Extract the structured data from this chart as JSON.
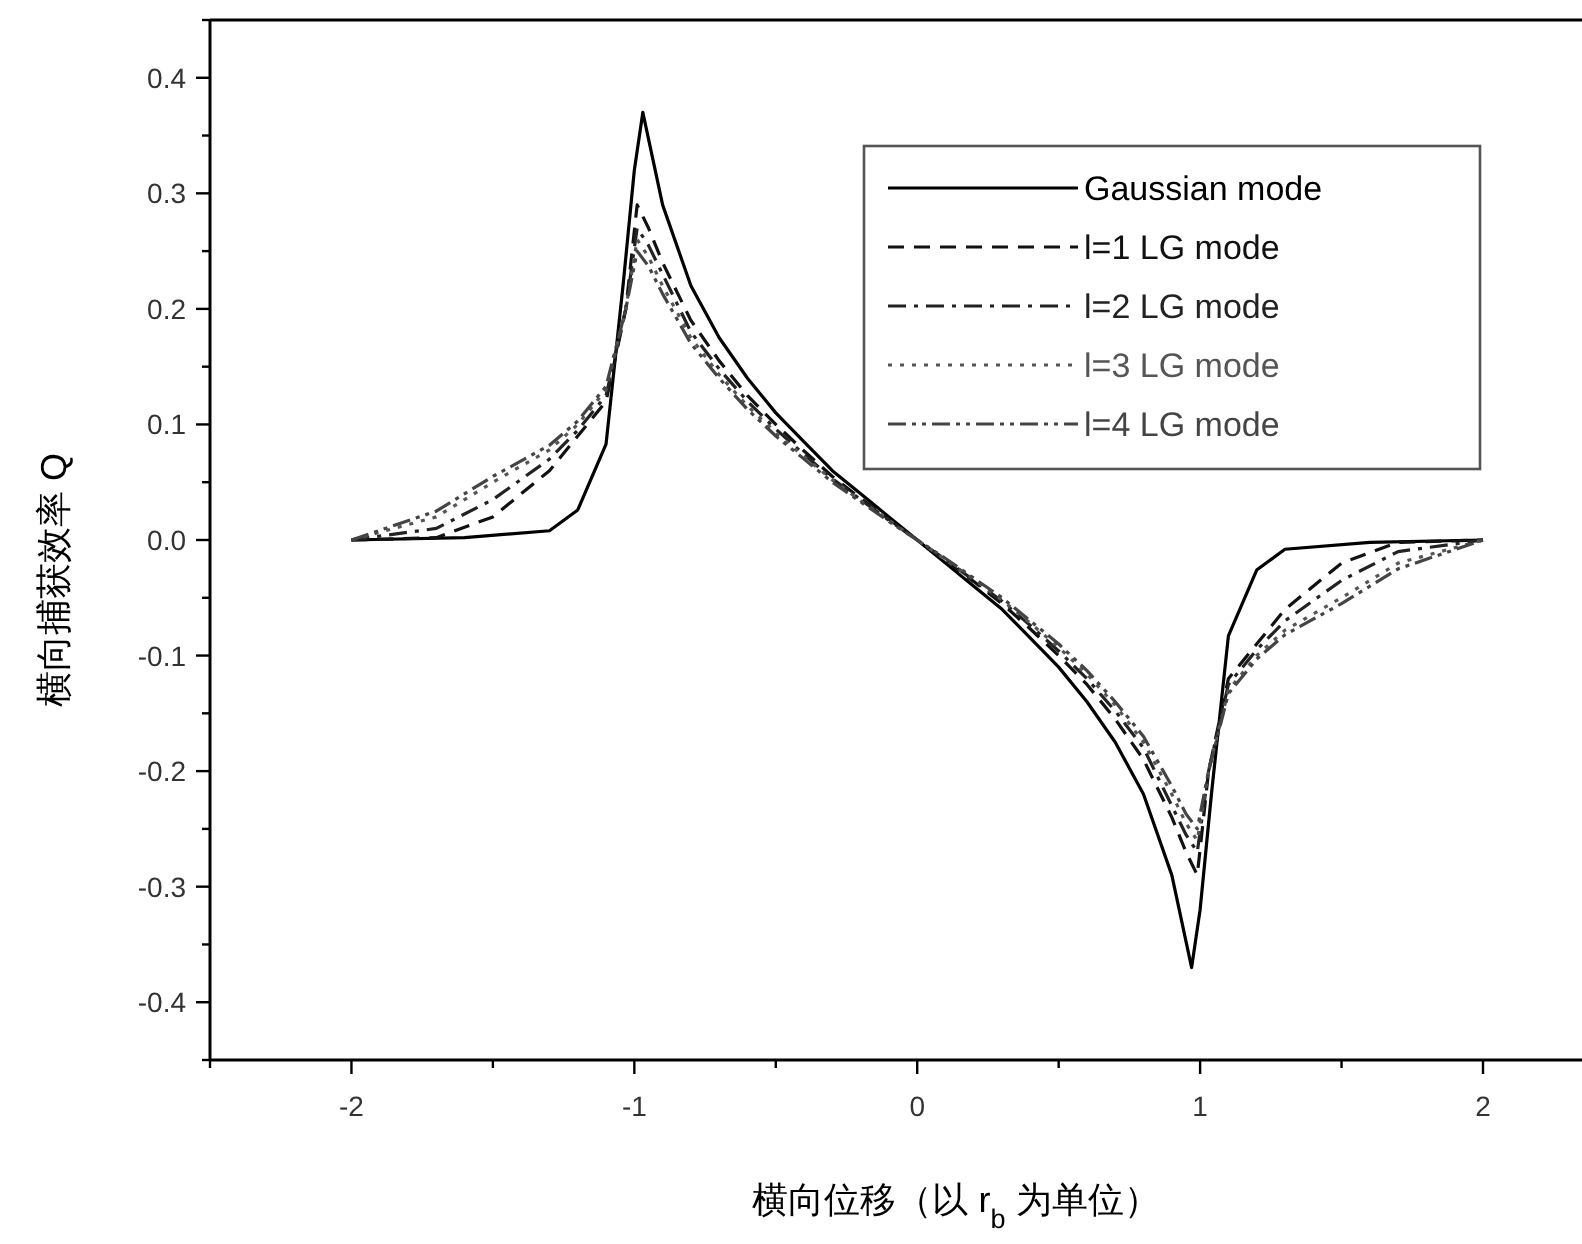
{
  "chart_data": {
    "type": "line",
    "xlabel": "横向位移（以 r$_{b}$ 为单位）",
    "ylabel": "横向捕获效率 Q",
    "x": [
      -2,
      -1.7,
      -1.5,
      -1.3,
      -1.2,
      -1.1,
      -1.03,
      -0.99,
      -0.95,
      -0.9,
      -0.8,
      -0.7,
      -0.6,
      -0.5,
      -0.4,
      -0.3,
      -0.2,
      -0.1,
      0,
      0.1,
      0.2,
      0.3,
      0.4,
      0.5,
      0.6,
      0.7,
      0.8,
      0.9,
      0.95,
      0.99,
      1.03,
      1.1,
      1.2,
      1.3,
      1.5,
      1.7,
      2
    ],
    "series": [
      {
        "name": "Gaussian mode",
        "color": "#000000",
        "line_style": "solid",
        "x": [
          -2,
          -1.6,
          -1.3,
          -1.2,
          -1.1,
          -1.04,
          -1.0,
          -0.97,
          -0.9,
          -0.8,
          -0.7,
          -0.6,
          -0.5,
          -0.4,
          -0.3,
          -0.2,
          -0.1,
          0,
          0.1,
          0.2,
          0.3,
          0.4,
          0.5,
          0.6,
          0.7,
          0.8,
          0.9,
          0.97,
          1.0,
          1.04,
          1.1,
          1.2,
          1.3,
          1.6,
          2
        ],
        "values": [
          0,
          0.002,
          0.008,
          0.026,
          0.083,
          0.22,
          0.32,
          0.37,
          0.29,
          0.22,
          0.175,
          0.14,
          0.11,
          0.085,
          0.06,
          0.04,
          0.02,
          0,
          -0.02,
          -0.04,
          -0.06,
          -0.085,
          -0.11,
          -0.14,
          -0.175,
          -0.22,
          -0.29,
          -0.37,
          -0.32,
          -0.22,
          -0.083,
          -0.026,
          -0.008,
          -0.002,
          0
        ]
      },
      {
        "name": "l=1 LG mode",
        "color": "#111111",
        "line_style": "dashed",
        "values": [
          0,
          0.002,
          0.02,
          0.06,
          0.09,
          0.12,
          0.2,
          0.29,
          0.27,
          0.24,
          0.19,
          0.155,
          0.125,
          0.1,
          0.077,
          0.055,
          0.036,
          0.018,
          0,
          -0.018,
          -0.036,
          -0.055,
          -0.077,
          -0.1,
          -0.125,
          -0.155,
          -0.19,
          -0.24,
          -0.27,
          -0.29,
          -0.2,
          -0.12,
          -0.09,
          -0.06,
          -0.02,
          -0.002,
          0
        ]
      },
      {
        "name": "l=2 LG mode",
        "color": "#222222",
        "line_style": "dashdot",
        "values": [
          0,
          0.01,
          0.035,
          0.07,
          0.095,
          0.125,
          0.2,
          0.27,
          0.255,
          0.23,
          0.18,
          0.148,
          0.12,
          0.096,
          0.074,
          0.053,
          0.035,
          0.017,
          0,
          -0.017,
          -0.035,
          -0.053,
          -0.074,
          -0.096,
          -0.12,
          -0.148,
          -0.18,
          -0.23,
          -0.255,
          -0.27,
          -0.2,
          -0.125,
          -0.095,
          -0.07,
          -0.035,
          -0.01,
          0
        ]
      },
      {
        "name": "l=3 LG mode",
        "color": "#555555",
        "line_style": "dotted",
        "values": [
          0,
          0.02,
          0.05,
          0.078,
          0.1,
          0.13,
          0.2,
          0.26,
          0.245,
          0.22,
          0.175,
          0.143,
          0.116,
          0.093,
          0.072,
          0.052,
          0.034,
          0.017,
          0,
          -0.017,
          -0.034,
          -0.052,
          -0.072,
          -0.093,
          -0.116,
          -0.143,
          -0.175,
          -0.22,
          -0.245,
          -0.26,
          -0.2,
          -0.13,
          -0.1,
          -0.078,
          -0.05,
          -0.02,
          0
        ]
      },
      {
        "name": "l=4 LG mode",
        "color": "#444444",
        "line_style": "dashdotdot",
        "values": [
          0,
          0.025,
          0.055,
          0.082,
          0.103,
          0.133,
          0.2,
          0.25,
          0.237,
          0.213,
          0.17,
          0.14,
          0.113,
          0.09,
          0.07,
          0.05,
          0.033,
          0.016,
          0,
          -0.016,
          -0.033,
          -0.05,
          -0.07,
          -0.09,
          -0.113,
          -0.14,
          -0.17,
          -0.213,
          -0.237,
          -0.25,
          -0.2,
          -0.133,
          -0.103,
          -0.082,
          -0.055,
          -0.025,
          0
        ]
      }
    ],
    "xlim": [
      -2.5,
      2.35
    ],
    "ylim": [
      -0.45,
      0.45
    ],
    "xticks": [
      {
        "value": -2.5,
        "label": null
      },
      -2,
      {
        "value": -1.5,
        "label": null
      },
      -1,
      {
        "value": -0.5,
        "label": null
      },
      0,
      {
        "value": 0.5,
        "label": null
      },
      1,
      {
        "value": 1.5,
        "label": null
      },
      2
    ],
    "yticks": [
      {
        "value": -0.45,
        "label": null
      },
      -0.4,
      {
        "value": -0.35,
        "label": null
      },
      -0.3,
      {
        "value": -0.25,
        "label": null
      },
      -0.2,
      {
        "value": -0.15,
        "label": null
      },
      -0.1,
      {
        "value": -0.05,
        "label": null
      },
      {
        "value": 0,
        "label": "0.0"
      },
      {
        "value": 0.05,
        "label": null
      },
      0.1,
      {
        "value": 0.15,
        "label": null
      },
      0.2,
      {
        "value": 0.25,
        "label": null
      },
      0.3,
      {
        "value": 0.35,
        "label": null
      },
      0.4,
      {
        "value": 0.45,
        "label": null
      }
    ],
    "grid": false,
    "legend": "top right"
  }
}
